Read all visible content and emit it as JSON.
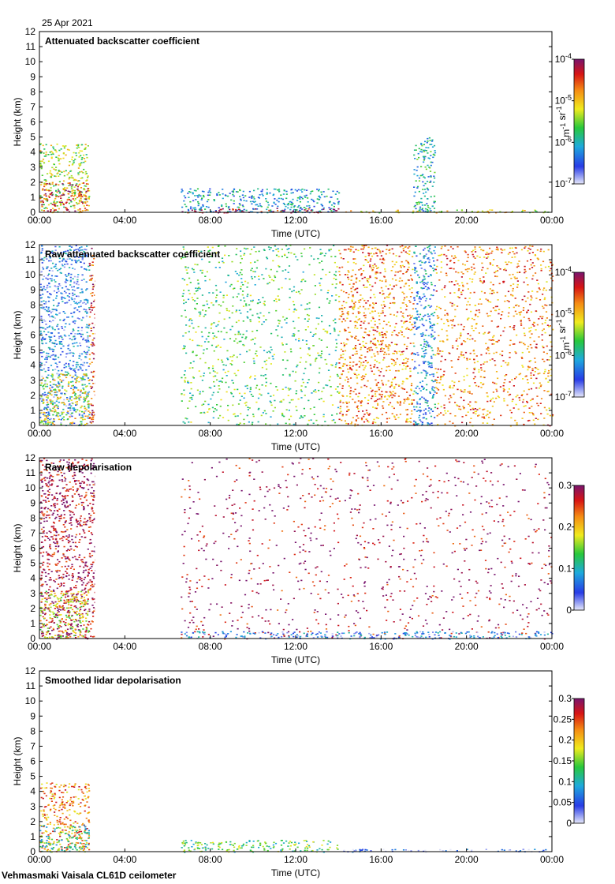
{
  "header": {
    "date": "25 Apr 2021"
  },
  "footer": {
    "instrument": "Vehmasmaki Vaisala CL61D ceilometer"
  },
  "chart_data": [
    {
      "type": "heatmap",
      "title": "Attenuated backscatter coefficient",
      "xlabel": "Time (UTC)",
      "ylabel": "Height (km)",
      "xlim": [
        0,
        24
      ],
      "ylim": [
        0,
        12
      ],
      "xticks": [
        "00:00",
        "04:00",
        "08:00",
        "12:00",
        "16:00",
        "20:00",
        "00:00"
      ],
      "yticks": [
        0,
        1,
        2,
        3,
        4,
        5,
        6,
        7,
        8,
        9,
        10,
        11,
        12
      ],
      "colorbar": {
        "scale": "log",
        "min": 1e-07,
        "max": 0.0001,
        "tick_labels": [
          "10^-4",
          "10^-5",
          "10^-6",
          "10^-7"
        ],
        "tick_values": [
          -4,
          -5,
          -6,
          -7
        ],
        "unit": "m^-1 sr^-1"
      },
      "no_data_hours": [
        [
          2.6,
          6.6
        ]
      ],
      "features": [
        {
          "t0": 0.0,
          "t1": 2.3,
          "h0": 0,
          "h1": 4.6,
          "level": 0.55,
          "desc": "boundary-layer aerosol/cloud"
        },
        {
          "t0": 0.0,
          "t1": 2.3,
          "h0": 0,
          "h1": 2.0,
          "level": 0.85,
          "desc": "dense near-surface layer"
        },
        {
          "t0": 6.6,
          "t1": 14.0,
          "h0": 0,
          "h1": 1.6,
          "level": 0.3,
          "desc": "residual layer"
        },
        {
          "t0": 6.6,
          "t1": 14.0,
          "h0": 0,
          "h1": 0.3,
          "level": 0.95,
          "desc": "surface layer"
        },
        {
          "t0": 14.0,
          "t1": 24.0,
          "h0": 0,
          "h1": 0.2,
          "level": 0.6,
          "desc": "shallow surface layer"
        },
        {
          "t0": 17.5,
          "t1": 18.5,
          "h0": 0,
          "h1": 5.0,
          "level": 0.35,
          "desc": "column segment"
        }
      ]
    },
    {
      "type": "heatmap",
      "title": "Raw attenuated backscatter coefficient",
      "xlabel": "Time (UTC)",
      "ylabel": "Height (km)",
      "xlim": [
        0,
        24
      ],
      "ylim": [
        0,
        12
      ],
      "xticks": [
        "00:00",
        "04:00",
        "08:00",
        "12:00",
        "16:00",
        "20:00",
        "00:00"
      ],
      "yticks": [
        0,
        1,
        2,
        3,
        4,
        5,
        6,
        7,
        8,
        9,
        10,
        11,
        12
      ],
      "colorbar": {
        "scale": "log",
        "min": 1e-07,
        "max": 0.0001,
        "tick_labels": [
          "10^-4",
          "10^-5",
          "10^-6",
          "10^-7"
        ],
        "tick_values": [
          -4,
          -5,
          -6,
          -7
        ],
        "unit": "m^-1 sr^-1"
      },
      "no_data_hours": [
        [
          2.6,
          6.6
        ]
      ],
      "features": [
        {
          "t0": 0.0,
          "t1": 2.3,
          "h0": 0,
          "h1": 12,
          "level": 0.2,
          "desc": "noise background"
        },
        {
          "t0": 2.3,
          "t1": 2.6,
          "h0": 0,
          "h1": 12,
          "level": 0.85,
          "desc": "high-signal column"
        },
        {
          "t0": 0.0,
          "t1": 2.3,
          "h0": 0,
          "h1": 3.5,
          "level": 0.6,
          "desc": "boundary layer"
        },
        {
          "t0": 6.6,
          "t1": 14.0,
          "h0": 0,
          "h1": 12,
          "level": 0.45,
          "desc": "noise background"
        },
        {
          "t0": 14.0,
          "t1": 17.5,
          "h0": 0,
          "h1": 12,
          "level": 0.75,
          "desc": "noise background"
        },
        {
          "t0": 17.5,
          "t1": 18.5,
          "h0": 0,
          "h1": 12,
          "level": 0.25,
          "desc": "noise background"
        },
        {
          "t0": 18.5,
          "t1": 24.0,
          "h0": 0,
          "h1": 12,
          "level": 0.75,
          "desc": "noise background"
        }
      ]
    },
    {
      "type": "heatmap",
      "title": "Raw depolarisation",
      "xlabel": "Time (UTC)",
      "ylabel": "Height (km)",
      "xlim": [
        0,
        24
      ],
      "ylim": [
        0,
        12
      ],
      "xticks": [
        "00:00",
        "04:00",
        "08:00",
        "12:00",
        "16:00",
        "20:00",
        "00:00"
      ],
      "yticks": [
        0,
        1,
        2,
        3,
        4,
        5,
        6,
        7,
        8,
        9,
        10,
        11,
        12
      ],
      "colorbar": {
        "scale": "linear",
        "min": 0,
        "max": 0.3,
        "tick_labels": [
          "0.3",
          "0.2",
          "0.1",
          "0"
        ],
        "tick_values": [
          0.3,
          0.2,
          0.1,
          0
        ]
      },
      "no_data_hours": [
        [
          2.6,
          6.6
        ]
      ],
      "features": [
        {
          "t0": 0.0,
          "t1": 2.6,
          "h0": 0,
          "h1": 12,
          "level": 0.95,
          "desc": "noise"
        },
        {
          "t0": 6.6,
          "t1": 24.0,
          "h0": 0,
          "h1": 12,
          "level": 0.95,
          "desc": "noise"
        },
        {
          "t0": 0.0,
          "t1": 2.3,
          "h0": 0,
          "h1": 3.2,
          "level": 0.6,
          "desc": "boundary layer"
        },
        {
          "t0": 6.6,
          "t1": 24.0,
          "h0": 0,
          "h1": 0.5,
          "level": 0.2,
          "desc": "surface layer"
        }
      ]
    },
    {
      "type": "heatmap",
      "title": "Smoothed lidar depolarisation",
      "xlabel": "Time (UTC)",
      "ylabel": "Height (km)",
      "xlim": [
        0,
        24
      ],
      "ylim": [
        0,
        12
      ],
      "xticks": [
        "00:00",
        "04:00",
        "08:00",
        "12:00",
        "16:00",
        "20:00",
        "00:00"
      ],
      "yticks": [
        0,
        1,
        2,
        3,
        4,
        5,
        6,
        7,
        8,
        9,
        10,
        11,
        12
      ],
      "colorbar": {
        "scale": "linear",
        "min": 0,
        "max": 0.3,
        "tick_labels": [
          "0.3",
          "0.25",
          "0.2",
          "0.15",
          "0.1",
          "0.05",
          "0"
        ],
        "tick_values": [
          0.3,
          0.25,
          0.2,
          0.15,
          0.1,
          0.05,
          0
        ]
      },
      "no_data_hours": [
        [
          2.6,
          6.6
        ]
      ],
      "features": [
        {
          "t0": 0.0,
          "t1": 2.3,
          "h0": 0,
          "h1": 4.6,
          "level": 0.75,
          "desc": "boundary layer"
        },
        {
          "t0": 0.0,
          "t1": 2.3,
          "h0": 0,
          "h1": 1.8,
          "level": 0.4,
          "desc": "low-depolarisation core"
        },
        {
          "t0": 6.6,
          "t1": 14.0,
          "h0": 0,
          "h1": 0.8,
          "level": 0.45,
          "desc": "surface layer"
        },
        {
          "t0": 14.0,
          "t1": 24.0,
          "h0": 0,
          "h1": 0.2,
          "level": 0.1,
          "desc": "surface layer"
        }
      ]
    }
  ]
}
